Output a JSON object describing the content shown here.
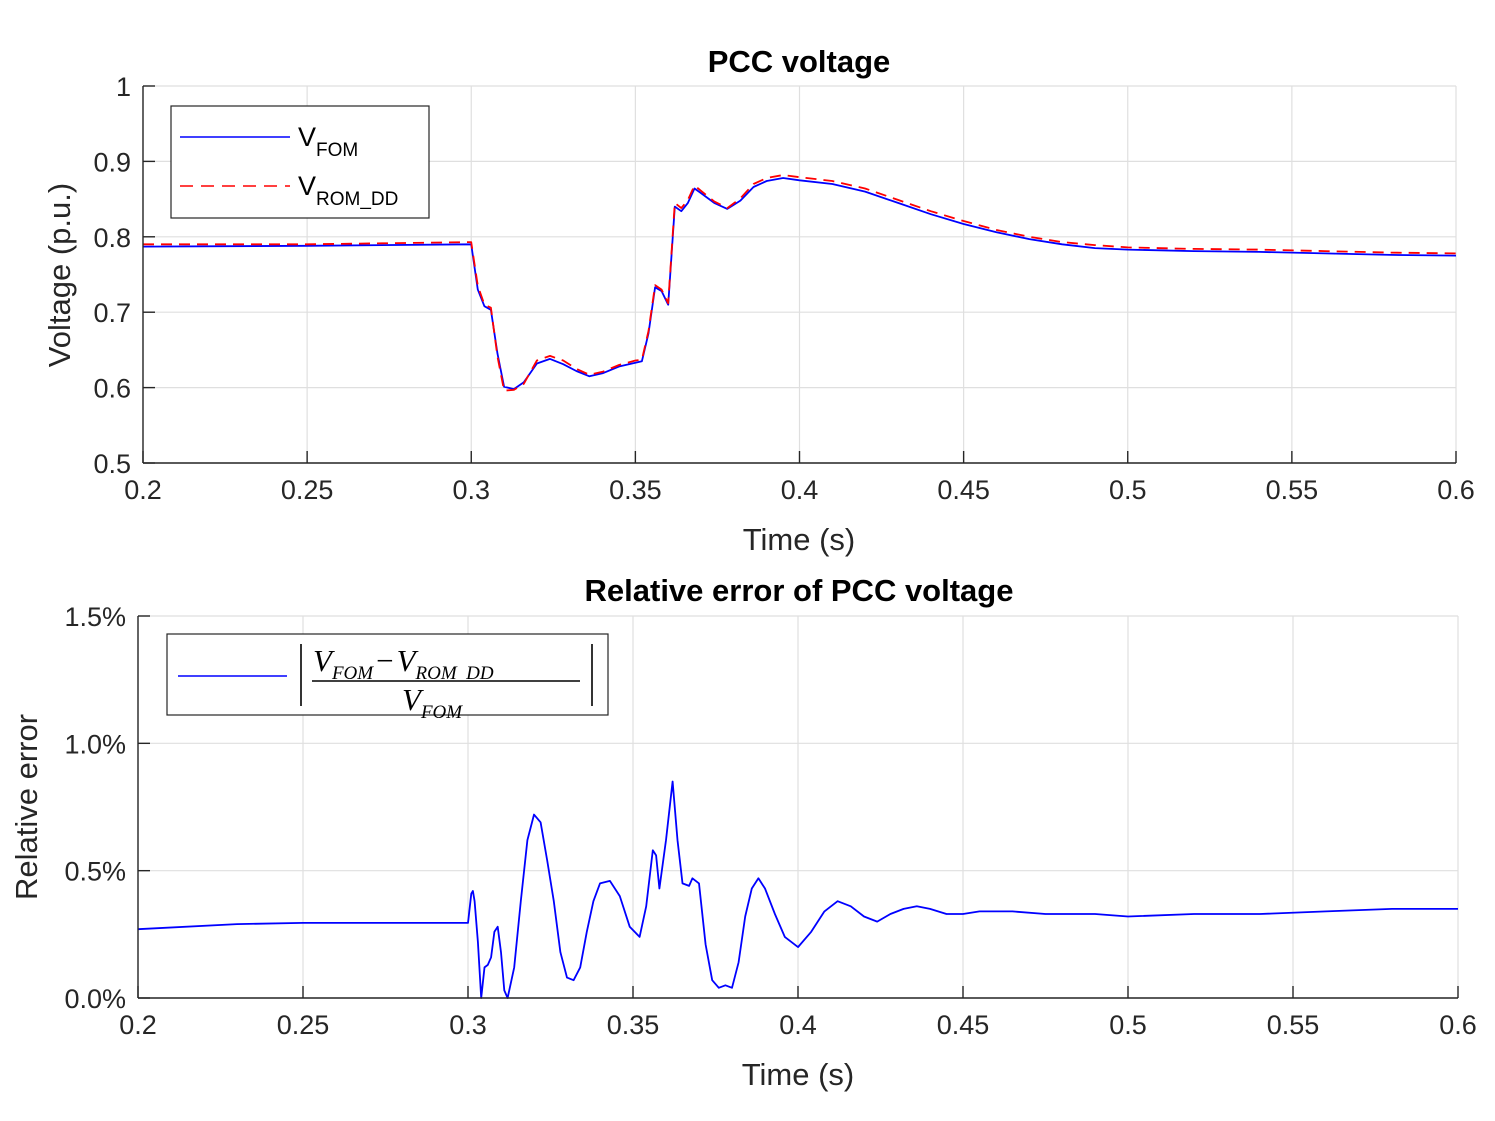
{
  "colors": {
    "v_fom": "#0000ff",
    "v_rom_dd": "#ff0000",
    "error": "#0000ff",
    "grid": "#dfdfdf",
    "axis": "#262626",
    "background": "#ffffff"
  },
  "chart_data": [
    {
      "type": "line",
      "title": "PCC voltage",
      "xlabel": "Time (s)",
      "ylabel": "Voltage (p.u.)",
      "xlim": [
        0.2,
        0.6
      ],
      "ylim": [
        0.5,
        1.0
      ],
      "xticks": [
        0.2,
        0.25,
        0.3,
        0.35,
        0.4,
        0.45,
        0.5,
        0.55,
        0.6
      ],
      "xtick_labels": [
        "0.2",
        "0.25",
        "0.3",
        "0.35",
        "0.4",
        "0.45",
        "0.5",
        "0.55",
        "0.6"
      ],
      "yticks": [
        0.5,
        0.6,
        0.7,
        0.8,
        0.9,
        1.0
      ],
      "ytick_labels": [
        "0.5",
        "0.6",
        "0.7",
        "0.8",
        "0.9",
        "1"
      ],
      "grid": true,
      "legend_position": "top-left",
      "series": [
        {
          "name": "V",
          "name_subscript": "FOM",
          "line_style": "solid",
          "x": [
            0.2,
            0.25,
            0.3,
            0.302,
            0.304,
            0.306,
            0.308,
            0.31,
            0.313,
            0.316,
            0.32,
            0.324,
            0.328,
            0.332,
            0.336,
            0.34,
            0.345,
            0.35,
            0.352,
            0.354,
            0.356,
            0.358,
            0.36,
            0.362,
            0.364,
            0.366,
            0.368,
            0.37,
            0.374,
            0.378,
            0.382,
            0.386,
            0.39,
            0.395,
            0.4,
            0.41,
            0.42,
            0.43,
            0.44,
            0.45,
            0.46,
            0.47,
            0.48,
            0.49,
            0.5,
            0.52,
            0.54,
            0.56,
            0.58,
            0.6
          ],
          "y": [
            0.787,
            0.788,
            0.79,
            0.73,
            0.708,
            0.703,
            0.645,
            0.601,
            0.598,
            0.607,
            0.632,
            0.638,
            0.631,
            0.622,
            0.615,
            0.619,
            0.628,
            0.633,
            0.635,
            0.672,
            0.733,
            0.728,
            0.71,
            0.84,
            0.834,
            0.845,
            0.864,
            0.858,
            0.845,
            0.837,
            0.848,
            0.866,
            0.874,
            0.878,
            0.875,
            0.87,
            0.86,
            0.845,
            0.83,
            0.817,
            0.806,
            0.797,
            0.79,
            0.785,
            0.783,
            0.781,
            0.78,
            0.778,
            0.776,
            0.775
          ]
        },
        {
          "name": "V",
          "name_subscript": "ROM_DD",
          "line_style": "dashed",
          "x": [
            0.2,
            0.25,
            0.3,
            0.302,
            0.304,
            0.306,
            0.308,
            0.31,
            0.313,
            0.316,
            0.32,
            0.324,
            0.328,
            0.332,
            0.336,
            0.34,
            0.345,
            0.35,
            0.352,
            0.354,
            0.356,
            0.358,
            0.36,
            0.362,
            0.364,
            0.366,
            0.368,
            0.37,
            0.374,
            0.378,
            0.382,
            0.386,
            0.39,
            0.395,
            0.4,
            0.41,
            0.42,
            0.43,
            0.44,
            0.45,
            0.46,
            0.47,
            0.48,
            0.49,
            0.5,
            0.52,
            0.54,
            0.56,
            0.58,
            0.6
          ],
          "y": [
            0.79,
            0.79,
            0.793,
            0.735,
            0.71,
            0.706,
            0.641,
            0.596,
            0.597,
            0.605,
            0.636,
            0.642,
            0.636,
            0.625,
            0.617,
            0.621,
            0.63,
            0.636,
            0.637,
            0.675,
            0.736,
            0.73,
            0.712,
            0.845,
            0.838,
            0.849,
            0.868,
            0.861,
            0.847,
            0.838,
            0.851,
            0.87,
            0.878,
            0.882,
            0.879,
            0.874,
            0.864,
            0.849,
            0.834,
            0.821,
            0.809,
            0.8,
            0.793,
            0.789,
            0.786,
            0.784,
            0.783,
            0.781,
            0.779,
            0.778
          ]
        }
      ]
    },
    {
      "type": "line",
      "title": "Relative error of PCC voltage",
      "xlabel": "Time (s)",
      "ylabel": "Relative error",
      "xlim": [
        0.2,
        0.6
      ],
      "ylim": [
        0.0,
        0.015
      ],
      "xticks": [
        0.2,
        0.25,
        0.3,
        0.35,
        0.4,
        0.45,
        0.5,
        0.55,
        0.6
      ],
      "xtick_labels": [
        "0.2",
        "0.25",
        "0.3",
        "0.35",
        "0.4",
        "0.45",
        "0.5",
        "0.55",
        "0.6"
      ],
      "yticks": [
        0.0,
        0.005,
        0.01,
        0.015
      ],
      "ytick_labels": [
        "0.0%",
        "0.5%",
        "1.0%",
        "1.5%"
      ],
      "grid": true,
      "legend_position": "top-left",
      "series": [
        {
          "name": "|(V_FOM - V_ROM_DD) / V_FOM|",
          "line_style": "solid",
          "x": [
            0.2,
            0.23,
            0.25,
            0.3,
            0.301,
            0.3015,
            0.302,
            0.303,
            0.304,
            0.305,
            0.306,
            0.307,
            0.308,
            0.309,
            0.31,
            0.311,
            0.312,
            0.314,
            0.316,
            0.318,
            0.32,
            0.322,
            0.324,
            0.326,
            0.328,
            0.33,
            0.332,
            0.334,
            0.336,
            0.338,
            0.34,
            0.343,
            0.346,
            0.349,
            0.352,
            0.354,
            0.356,
            0.357,
            0.358,
            0.36,
            0.362,
            0.3635,
            0.365,
            0.367,
            0.368,
            0.37,
            0.372,
            0.374,
            0.376,
            0.378,
            0.38,
            0.382,
            0.384,
            0.386,
            0.388,
            0.39,
            0.393,
            0.396,
            0.4,
            0.404,
            0.408,
            0.412,
            0.416,
            0.42,
            0.424,
            0.428,
            0.432,
            0.436,
            0.44,
            0.445,
            0.45,
            0.455,
            0.465,
            0.475,
            0.49,
            0.5,
            0.52,
            0.54,
            0.56,
            0.58,
            0.6
          ],
          "y": [
            0.0027,
            0.0029,
            0.00295,
            0.00295,
            0.0041,
            0.0042,
            0.0038,
            0.0022,
            0.0,
            0.0012,
            0.0013,
            0.0016,
            0.0026,
            0.0028,
            0.0018,
            0.0003,
            0.0,
            0.0012,
            0.0038,
            0.0062,
            0.0072,
            0.0069,
            0.0054,
            0.0038,
            0.0018,
            0.0008,
            0.0007,
            0.0012,
            0.0026,
            0.0038,
            0.0045,
            0.0046,
            0.004,
            0.0028,
            0.0024,
            0.0036,
            0.0058,
            0.0056,
            0.0043,
            0.0062,
            0.0085,
            0.0062,
            0.0045,
            0.0044,
            0.0047,
            0.0045,
            0.0021,
            0.0007,
            0.0004,
            0.0005,
            0.0004,
            0.0014,
            0.0032,
            0.0043,
            0.0047,
            0.0043,
            0.0033,
            0.0024,
            0.002,
            0.0026,
            0.0034,
            0.0038,
            0.0036,
            0.0032,
            0.003,
            0.0033,
            0.0035,
            0.0036,
            0.0035,
            0.0033,
            0.0033,
            0.0034,
            0.0034,
            0.0033,
            0.0033,
            0.0032,
            0.0033,
            0.0033,
            0.0034,
            0.0035,
            0.0035
          ]
        }
      ]
    }
  ],
  "legend_formula": {
    "numerator_left": "V",
    "numerator_left_sub": "FOM",
    "minus": "−",
    "numerator_right": "V",
    "numerator_right_sub": "ROM_DD",
    "denominator": "V",
    "denominator_sub": "FOM"
  }
}
